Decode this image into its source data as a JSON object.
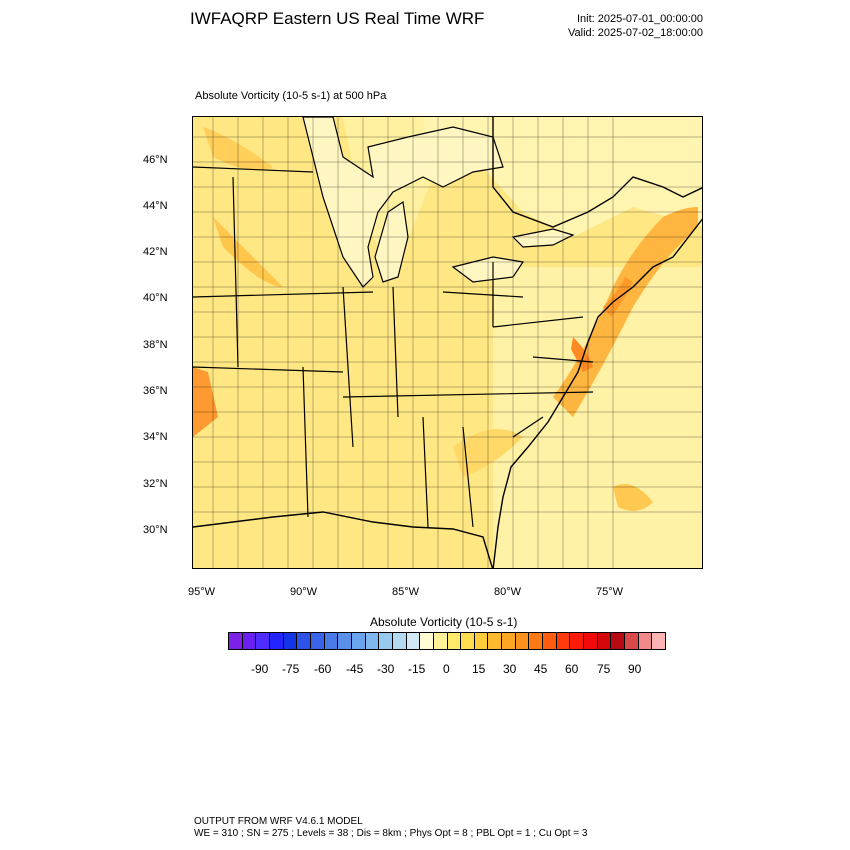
{
  "header": {
    "title": "IWFAQRP Eastern US Real Time WRF",
    "init": "Init: 2025-07-01_00:00:00",
    "valid": "Valid: 2025-07-02_18:00:00"
  },
  "plot": {
    "subtitle": "Absolute Vorticity   (10-5 s-1)     at   500 hPa",
    "lat_labels": [
      "46°N",
      "44°N",
      "42°N",
      "40°N",
      "38°N",
      "36°N",
      "34°N",
      "32°N",
      "30°N"
    ],
    "lon_labels": [
      "95°W",
      "90°W",
      "85°W",
      "80°W",
      "75°W"
    ]
  },
  "colorbar": {
    "title": "Absolute Vorticity  (10-5 s-1)",
    "labels": [
      "-90",
      "-75",
      "-60",
      "-45",
      "-30",
      "-15",
      "0",
      "15",
      "30",
      "45",
      "60",
      "75",
      "90"
    ],
    "colors": [
      "#7b22e6",
      "#6a20ef",
      "#4f2cff",
      "#2424ff",
      "#1434e8",
      "#2e52e8",
      "#3a64ea",
      "#4a7ae8",
      "#5a90ea",
      "#6aa4ec",
      "#80b8ee",
      "#98caf0",
      "#b4daf2",
      "#d2e8f4",
      "#fffbd2",
      "#fff39a",
      "#ffe968",
      "#ffdc50",
      "#ffcc3c",
      "#ffba2e",
      "#ffa624",
      "#ff921c",
      "#ff7a14",
      "#ff5c10",
      "#ff3a0c",
      "#ff1a0a",
      "#f00a0a",
      "#d4080a",
      "#b80a12",
      "#d84a4a",
      "#f08a8a",
      "#ffb4b4"
    ]
  },
  "footer": {
    "line1": "OUTPUT FROM WRF V4.6.1 MODEL",
    "line2": "WE = 310 ; SN = 275 ; Levels = 38 ; Dis = 8km ; Phys Opt = 8 ; PBL Opt = 1 ; Cu Opt = 3"
  }
}
